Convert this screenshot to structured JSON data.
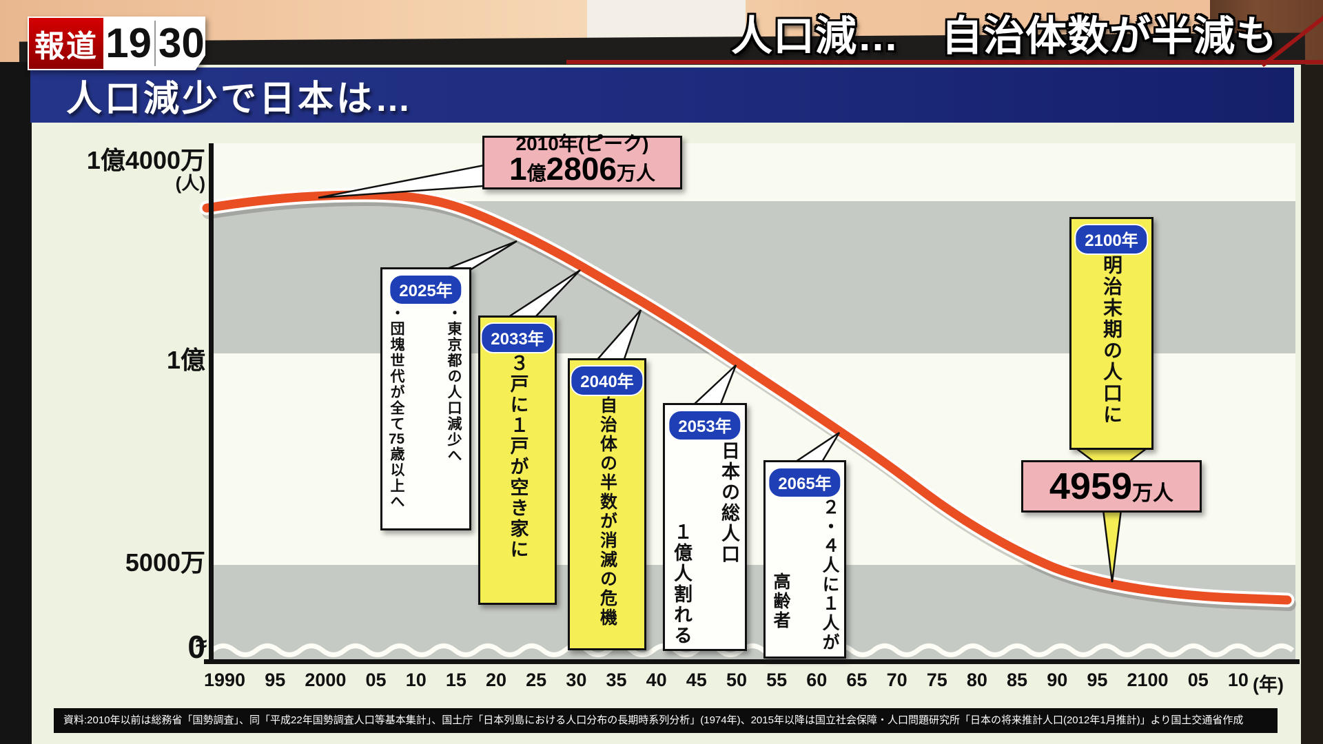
{
  "program_logo": {
    "kanji": "報道",
    "time_left": "19",
    "time_right": "30"
  },
  "headline": {
    "text": "人口減…　自治体数が半減も"
  },
  "banner": {
    "title": "人口減少で日本は…"
  },
  "source_note": "資料:2010年以前は総務省「国勢調査」、同「平成22年国勢調査人口等基本集計」、国土庁「日本列島における人口分布の長期時系列分析」(1974年)、2015年以降は国立社会保障・人口問題研究所「日本の将来推計人口(2012年1月推計)」より国土交通省作成",
  "chart_data": {
    "type": "line",
    "title": "人口減少で日本は…",
    "unit_y": "(人)",
    "unit_x": "(年)",
    "axis_break": "≈",
    "y_ticks": [
      "1億4000万",
      "1億",
      "5000万",
      "0"
    ],
    "x_ticks": [
      "1990",
      "95",
      "2000",
      "05",
      "10",
      "15",
      "20",
      "25",
      "30",
      "35",
      "40",
      "45",
      "50",
      "55",
      "60",
      "65",
      "70",
      "75",
      "80",
      "85",
      "90",
      "95",
      "2100",
      "05",
      "10"
    ],
    "grid": "alternating horizontal bands",
    "series": [
      {
        "name": "日本の総人口",
        "color": "#e94f22",
        "points_year_to_10k_people": [
          [
            1990,
            12361
          ],
          [
            2000,
            12693
          ],
          [
            2010,
            12806
          ],
          [
            2025,
            12250
          ],
          [
            2033,
            11800
          ],
          [
            2040,
            11100
          ],
          [
            2053,
            10000
          ],
          [
            2065,
            8800
          ],
          [
            2080,
            7000
          ],
          [
            2100,
            4959
          ],
          [
            2110,
            4300
          ]
        ]
      }
    ],
    "annotations_summary": [
      {
        "year": "2010",
        "label": "ピーク 1億2806万人"
      },
      {
        "year": "2025",
        "label": "東京都の人口減少へ・団塊世代が全て75歳以上へ"
      },
      {
        "year": "2033",
        "label": "3戸に1戸が空き家に"
      },
      {
        "year": "2040",
        "label": "自治体の半数が消滅の危機"
      },
      {
        "year": "2053",
        "label": "日本の総人口1億人割れる"
      },
      {
        "year": "2065",
        "label": "2.4人に1人が高齢者"
      },
      {
        "year": "2100",
        "label": "明治末期の人口に 4959万人"
      }
    ]
  },
  "annotations": {
    "peak": {
      "year": "2010年(ピーク)",
      "v1": "1",
      "v2": "億",
      "v3": "2806",
      "v4": "万人"
    },
    "y2025": {
      "year": "2025年",
      "col1": "・東京都の人口減少へ",
      "col2a": "・団塊世代が全て",
      "col2b": "75",
      "col2c": "歳以上へ"
    },
    "y2033": {
      "year": "2033年",
      "col1": "３戸に１戸が空き家に"
    },
    "y2040": {
      "year": "2040年",
      "col1": "自治体の半数が消滅の危機"
    },
    "y2053": {
      "year": "2053年",
      "col1": "日本の総人口",
      "col2": "１億人割れる"
    },
    "y2065": {
      "year": "2065年",
      "col1": "２・４人に１人が",
      "col2": "高齢者"
    },
    "y2100": {
      "year": "2100年",
      "col1": "明治末期の人口に",
      "v1": "4959",
      "v2": "万人"
    }
  },
  "colors": {
    "curve": "#e94f22",
    "band_grey": "#c6cac4",
    "band_light": "#f9fbf1",
    "banner_blue": "#1d2b7d",
    "pill_blue": "#1e3fb5",
    "note_yellow": "#f5ee55",
    "note_pink": "#f0b4b8",
    "underline_red": "#9e1616"
  }
}
